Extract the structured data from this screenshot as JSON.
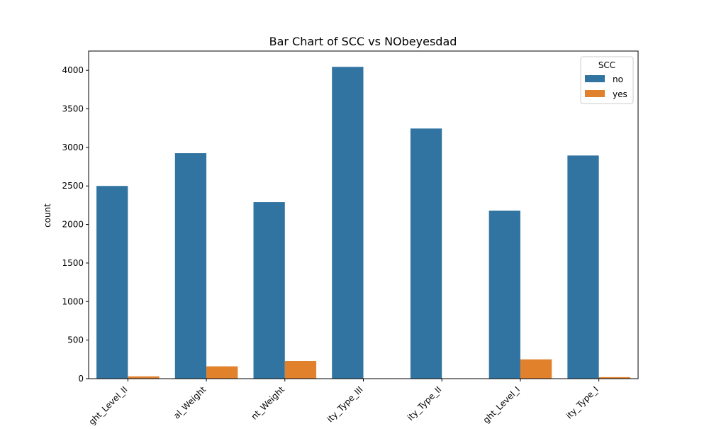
{
  "chart_data": {
    "type": "bar",
    "title": "Bar Chart of SCC vs NObeyesdad",
    "xlabel": "",
    "ylabel": "count",
    "categories": [
      "ght_Level_II",
      "al_Weight",
      "nt_Weight",
      "ity_Type_III",
      "ity_Type_II",
      "ght_Level_I",
      "ity_Type_I"
    ],
    "series": [
      {
        "name": "no",
        "color": "#3274a1",
        "values": [
          2500,
          2925,
          2290,
          4045,
          3245,
          2180,
          2895
        ]
      },
      {
        "name": "yes",
        "color": "#e1812c",
        "values": [
          30,
          160,
          230,
          3,
          3,
          250,
          20
        ]
      }
    ],
    "ylim": [
      0,
      4250
    ],
    "yticks": [
      0,
      500,
      1000,
      1500,
      2000,
      2500,
      3000,
      3500,
      4000
    ],
    "grid": false,
    "legend": {
      "title": "SCC",
      "position": "top-right"
    }
  }
}
